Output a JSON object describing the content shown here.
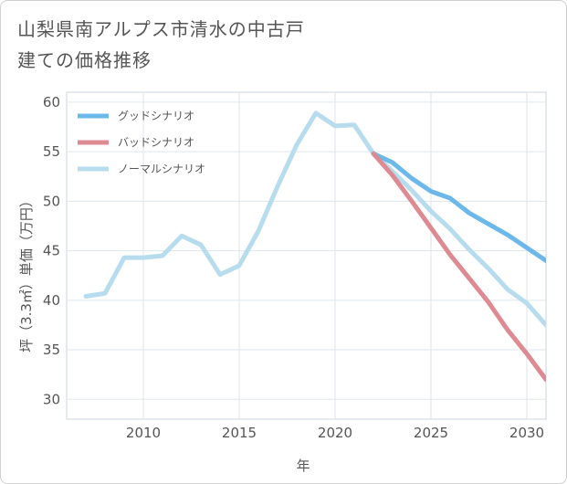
{
  "title": "山梨県南アルプス市清水の中古戸建ての価格推移",
  "chart_data": {
    "type": "line",
    "title": "山梨県南アルプス市清水の中古戸建ての価格推移",
    "xlabel": "年",
    "ylabel": "坪（3.3㎡）単価（万円）",
    "xlim": [
      2006,
      2031
    ],
    "ylim": [
      28,
      61
    ],
    "xticks": [
      2010,
      2015,
      2020,
      2025,
      2030
    ],
    "yticks": [
      30,
      35,
      40,
      45,
      50,
      55,
      60
    ],
    "grid": true,
    "legend_position": "top-left",
    "series": [
      {
        "name": "グッドシナリオ",
        "color": "#6cb8ea",
        "x": [
          2022,
          2023,
          2024,
          2025,
          2026,
          2027,
          2028,
          2029,
          2030,
          2031
        ],
        "values": [
          54.8,
          53.9,
          52.3,
          51.0,
          50.3,
          48.8,
          47.7,
          46.6,
          45.3,
          44.0
        ]
      },
      {
        "name": "バッドシナリオ",
        "color": "#dd8a92",
        "x": [
          2022,
          2023,
          2024,
          2025,
          2026,
          2027,
          2028,
          2029,
          2030,
          2031
        ],
        "values": [
          54.8,
          52.6,
          50.0,
          47.3,
          44.6,
          42.2,
          39.8,
          37.0,
          34.6,
          32.0
        ]
      },
      {
        "name": "ノーマルシナリオ",
        "color": "#b7dcee",
        "x": [
          2007,
          2008,
          2009,
          2010,
          2011,
          2012,
          2013,
          2014,
          2015,
          2016,
          2017,
          2018,
          2019,
          2020,
          2021,
          2022,
          2023,
          2024,
          2025,
          2026,
          2027,
          2028,
          2029,
          2030,
          2031
        ],
        "values": [
          40.4,
          40.7,
          44.3,
          44.3,
          44.5,
          46.5,
          45.6,
          42.6,
          43.5,
          47.0,
          51.5,
          55.7,
          58.9,
          57.6,
          57.7,
          54.8,
          53.0,
          51.1,
          49.0,
          47.2,
          45.1,
          43.2,
          41.1,
          39.7,
          37.5
        ]
      }
    ]
  }
}
